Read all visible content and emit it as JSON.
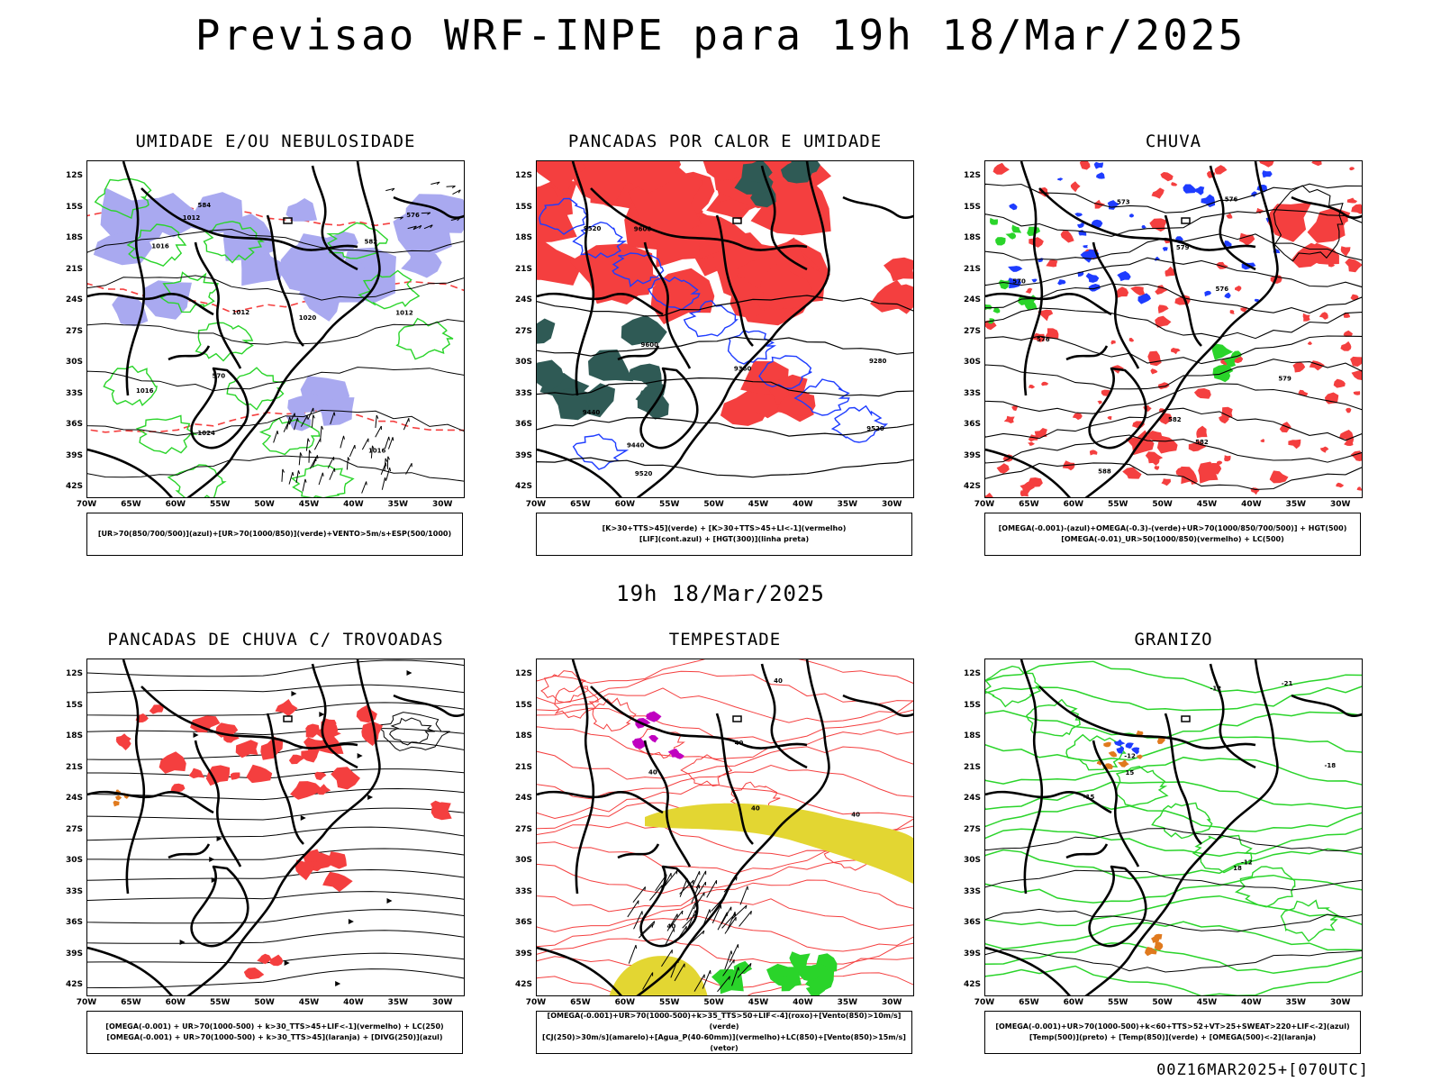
{
  "page": {
    "title": "Previsao WRF-INPE  para 19h 18/Mar/2025",
    "mid_date": "19h 18/Mar/2025",
    "footer": "00Z16MAR2025+[070UTC]"
  },
  "axes": {
    "lat_labels": [
      "12S",
      "15S",
      "18S",
      "21S",
      "24S",
      "27S",
      "30S",
      "33S",
      "36S",
      "39S",
      "42S"
    ],
    "lon_labels": [
      "70W",
      "65W",
      "60W",
      "55W",
      "50W",
      "45W",
      "40W",
      "35W",
      "30W"
    ]
  },
  "colors": {
    "humidity_blue": "#a9a9f0",
    "green": "#2ad42a",
    "red": "#f43f3f",
    "dark_teal": "#2f5a55",
    "blue": "#1e3cff",
    "yellow": "#e3d632",
    "orange": "#e07a1e",
    "magenta": "#c000c0"
  },
  "panels": [
    {
      "id": "p1",
      "title": "UMIDADE E/OU NEBULOSIDADE",
      "legend": [
        "[UR>70(850/700/500)](azul)+[UR>70(1000/850)](verde)+VENTO>5m/s+ESP(500/1000)"
      ],
      "contour_labels": [
        "1012",
        "1012",
        "1012",
        "1016",
        "1016",
        "1016",
        "1020",
        "1024",
        "570",
        "576",
        "582",
        "584"
      ]
    },
    {
      "id": "p2",
      "title": "PANCADAS POR CALOR E UMIDADE",
      "legend": [
        "[K>30+TTS>45](verde) + [K>30+TTS>45+LI<-1](vermelho)",
        "[LIF](cont.azul) + [HGT(300)](linha preta)"
      ],
      "contour_labels": [
        "9600",
        "9600",
        "9520",
        "9520",
        "9440",
        "9440",
        "9360",
        "9280",
        "9520"
      ]
    },
    {
      "id": "p3",
      "title": "CHUVA",
      "legend": [
        "[OMEGA(-0.001)-(azul)+OMEGA(-0.3)-(verde)+UR>70(1000/850/700/500)] + HGT(500)",
        "[OMEGA(-0.01)_UR>50(1000/850)(vermelho) + LC(500)"
      ],
      "contour_labels": [
        "588",
        "582",
        "579",
        "576",
        "573",
        "570",
        "582",
        "576",
        "579",
        "576"
      ]
    },
    {
      "id": "p4",
      "title": "PANCADAS DE CHUVA C/ TROVOADAS",
      "legend": [
        "[OMEGA(-0.001) + UR>70(1000-500) + k>30_TTS>45+LIF<-1](vermelho) + LC(250)",
        "[OMEGA(-0.001) + UR>70(1000-500) + k>30_TTS>45](laranja) + [DIVG(250)](azul)"
      ],
      "contour_labels": []
    },
    {
      "id": "p5",
      "title": "TEMPESTADE",
      "legend": [
        "[OMEGA(-0.001)+UR>70(1000-500)+k>35_TTS>50+LIF<-4](roxo)+[Vento(850)>10m/s](verde)",
        "[CJ(250)>30m/s](amarelo)+[Agua_P(40-60mm)](vermelho)+LC(850)+[Vento(850)>15m/s](vetor)"
      ],
      "contour_labels": [
        "40",
        "40",
        "40",
        "40",
        "40",
        "40"
      ]
    },
    {
      "id": "p6",
      "title": "GRANIZO",
      "legend": [
        "[OMEGA(-0.001)+UR>70(1000-500)+k<60+TTS>52+VT>25+SWEAT>220+LIF<-2](azul)",
        "[Temp(500)](preto) + [Temp(850)](verde) + [OMEGA(500)<-2](laranja)"
      ],
      "contour_labels": [
        "-12",
        "-12",
        "-15",
        "-18",
        "-12",
        "-21",
        "15",
        "18"
      ]
    }
  ]
}
